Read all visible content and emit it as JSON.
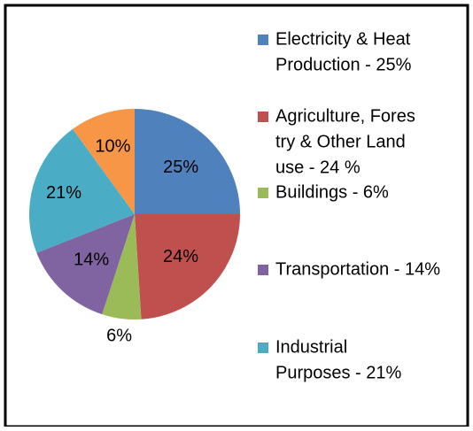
{
  "chart_data": {
    "type": "pie",
    "categories": [
      [
        "Electricity & Heat",
        "Production - 25%"
      ],
      [
        "Agriculture, Fores",
        "try & Other Land",
        "use - 24 %"
      ],
      [
        "Buildings -  6%"
      ],
      [
        "Transportation - 14%"
      ],
      [
        "Industrial",
        "Purposes - 21%"
      ],
      null
    ],
    "values": [
      25,
      24,
      6,
      14,
      21,
      10
    ],
    "value_labels": [
      "25%",
      "24%",
      "6%",
      "14%",
      "21%",
      "10%"
    ],
    "colors": [
      "#4f81bd",
      "#c0504d",
      "#9bbb59",
      "#8064a2",
      "#4bacc6",
      "#f79646"
    ]
  }
}
